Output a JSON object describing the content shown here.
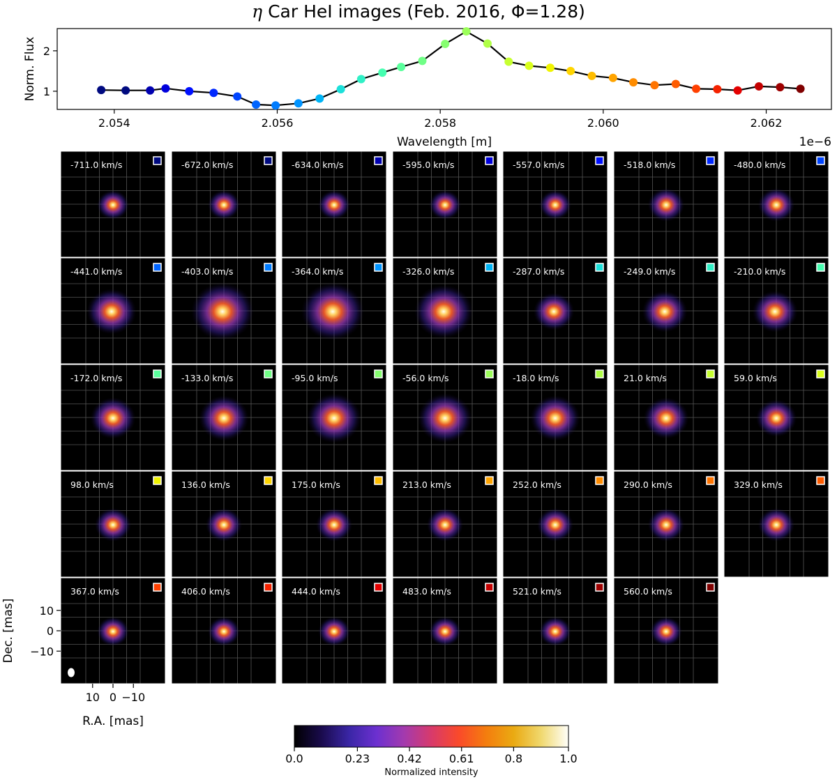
{
  "title": {
    "prefix": "η",
    "text": "Car HeI images (Feb. 2016, Φ=1.28)"
  },
  "chart_data": [
    {
      "type": "line",
      "name": "spectrum",
      "ylabel": "Norm. Flux",
      "xlabel": "Wavelength [m]",
      "x_offset_label": "1e−6",
      "xlim": [
        2.0533,
        2.0628
      ],
      "ylim": [
        0.55,
        2.55
      ],
      "xticks": [
        2.054,
        2.056,
        2.058,
        2.06,
        2.062
      ],
      "xtick_labels": [
        "2.054",
        "2.056",
        "2.058",
        "2.060",
        "2.062"
      ],
      "yticks": [
        1,
        2
      ],
      "ytick_labels": [
        "1",
        "2"
      ],
      "x": [
        2.05384,
        2.05414,
        2.05444,
        2.05463,
        2.05492,
        2.05522,
        2.05551,
        2.05574,
        2.05598,
        2.05626,
        2.05652,
        2.05678,
        2.05703,
        2.05729,
        2.05752,
        2.05778,
        2.05806,
        2.05832,
        2.05858,
        2.05884,
        2.05909,
        2.05935,
        2.0596,
        2.05986,
        2.06012,
        2.06037,
        2.06063,
        2.06089,
        2.06114,
        2.0614,
        2.06165,
        2.06191,
        2.06217,
        2.06242
      ],
      "values": [
        1.03,
        1.02,
        1.02,
        1.07,
        1.0,
        0.96,
        0.87,
        0.67,
        0.65,
        0.7,
        0.82,
        1.05,
        1.3,
        1.46,
        1.6,
        1.75,
        2.17,
        2.48,
        2.18,
        1.73,
        1.63,
        1.58,
        1.5,
        1.38,
        1.33,
        1.22,
        1.15,
        1.18,
        1.06,
        1.05,
        1.02,
        1.12,
        1.1,
        1.06
      ],
      "point_colors": [
        "#000a80",
        "#000a80",
        "#0000b0",
        "#0000dc",
        "#0010ff",
        "#0028ff",
        "#0044ff",
        "#0064ff",
        "#007cff",
        "#0094ff",
        "#00b4f6",
        "#1ce0da",
        "#30f0c6",
        "#46feb0",
        "#5aff9c",
        "#70ff86",
        "#86ff70",
        "#9cff5a",
        "#b0ff46",
        "#c6ff30",
        "#daff1c",
        "#f0f400",
        "#ffd500",
        "#ffbd00",
        "#ffa400",
        "#ff8c00",
        "#ff7400",
        "#ff5c00",
        "#ff4000",
        "#f42200",
        "#e40000",
        "#c40000",
        "#9e0000",
        "#800000"
      ]
    },
    {
      "type": "heatmap",
      "name": "channel-maps",
      "xlabel": "R.A. [mas]",
      "ylabel": "Dec. [mas]",
      "xticks": [
        10,
        0,
        -10
      ],
      "yticks": [
        10,
        0,
        -10
      ],
      "xtick_labels": [
        "10",
        "0",
        "−10"
      ],
      "ytick_labels": [
        "10",
        "0",
        "−10"
      ],
      "velocity_unit": "km/s",
      "panels": [
        {
          "velocity": "-711.0 km/s",
          "intensity": 0.42,
          "extent": 6,
          "color": "#000a80"
        },
        {
          "velocity": "-672.0 km/s",
          "intensity": 0.42,
          "extent": 6,
          "color": "#000a80"
        },
        {
          "velocity": "-634.0 km/s",
          "intensity": 0.42,
          "extent": 6,
          "color": "#0000b0"
        },
        {
          "velocity": "-595.0 km/s",
          "intensity": 0.44,
          "extent": 6,
          "color": "#0000dc"
        },
        {
          "velocity": "-557.0 km/s",
          "intensity": 0.42,
          "extent": 6,
          "color": "#0010ff"
        },
        {
          "velocity": "-518.0 km/s",
          "intensity": 0.42,
          "extent": 7,
          "color": "#0028ff"
        },
        {
          "velocity": "-480.0 km/s",
          "intensity": 0.42,
          "extent": 7,
          "color": "#0044ff"
        },
        {
          "velocity": "-441.0 km/s",
          "intensity": 0.45,
          "extent": 10,
          "color": "#0064ff"
        },
        {
          "velocity": "-403.0 km/s",
          "intensity": 0.5,
          "extent": 13,
          "color": "#007cff"
        },
        {
          "velocity": "-364.0 km/s",
          "intensity": 0.5,
          "extent": 13,
          "color": "#0094ff"
        },
        {
          "velocity": "-326.0 km/s",
          "intensity": 0.47,
          "extent": 12,
          "color": "#00b4f6"
        },
        {
          "velocity": "-287.0 km/s",
          "intensity": 0.42,
          "extent": 8,
          "color": "#1ce0da"
        },
        {
          "velocity": "-249.0 km/s",
          "intensity": 0.42,
          "extent": 9,
          "color": "#30f0c6"
        },
        {
          "velocity": "-210.0 km/s",
          "intensity": 0.42,
          "extent": 9,
          "color": "#46feb0"
        },
        {
          "velocity": "-172.0 km/s",
          "intensity": 0.44,
          "extent": 9,
          "color": "#5aff9c"
        },
        {
          "velocity": "-133.0 km/s",
          "intensity": 0.44,
          "extent": 10,
          "color": "#70ff86"
        },
        {
          "velocity": "-95.0 km/s",
          "intensity": 0.46,
          "extent": 11,
          "color": "#86ff70"
        },
        {
          "velocity": "-56.0 km/s",
          "intensity": 0.46,
          "extent": 11,
          "color": "#9cff5a"
        },
        {
          "velocity": "-18.0 km/s",
          "intensity": 0.44,
          "extent": 10,
          "color": "#b0ff46"
        },
        {
          "velocity": "21.0 km/s",
          "intensity": 0.43,
          "extent": 9,
          "color": "#c6ff30"
        },
        {
          "velocity": "59.0 km/s",
          "intensity": 0.42,
          "extent": 8,
          "color": "#daff1c"
        },
        {
          "velocity": "98.0 km/s",
          "intensity": 0.42,
          "extent": 7,
          "color": "#f0f400"
        },
        {
          "velocity": "136.0 km/s",
          "intensity": 0.42,
          "extent": 7,
          "color": "#ffd500"
        },
        {
          "velocity": "175.0 km/s",
          "intensity": 0.42,
          "extent": 7,
          "color": "#ffbd00"
        },
        {
          "velocity": "213.0 km/s",
          "intensity": 0.42,
          "extent": 7,
          "color": "#ffa400"
        },
        {
          "velocity": "252.0 km/s",
          "intensity": 0.42,
          "extent": 7,
          "color": "#ff8c00"
        },
        {
          "velocity": "290.0 km/s",
          "intensity": 0.42,
          "extent": 7,
          "color": "#ff7400"
        },
        {
          "velocity": "329.0 km/s",
          "intensity": 0.42,
          "extent": 7,
          "color": "#ff5c00"
        },
        {
          "velocity": "367.0 km/s",
          "intensity": 0.42,
          "extent": 6,
          "color": "#ff4000"
        },
        {
          "velocity": "406.0 km/s",
          "intensity": 0.42,
          "extent": 6,
          "color": "#f42200"
        },
        {
          "velocity": "444.0 km/s",
          "intensity": 0.42,
          "extent": 6,
          "color": "#e40000"
        },
        {
          "velocity": "483.0 km/s",
          "intensity": 0.42,
          "extent": 6,
          "color": "#c40000"
        },
        {
          "velocity": "521.0 km/s",
          "intensity": 0.42,
          "extent": 6,
          "color": "#9e0000"
        },
        {
          "velocity": "560.0 km/s",
          "intensity": 0.42,
          "extent": 6,
          "color": "#800000"
        }
      ]
    }
  ],
  "colorbar": {
    "label": "Normalized intensity",
    "range": [
      0.0,
      1.0
    ],
    "ticks": [
      0.0,
      0.23,
      0.42,
      0.61,
      0.8,
      1.0
    ],
    "tick_labels": [
      "0.0",
      "0.23",
      "0.42",
      "0.61",
      "0.8",
      "1.0"
    ],
    "colors": [
      "#000000",
      "#1a0b4e",
      "#3a26a6",
      "#6c30d0",
      "#a33aae",
      "#d83a6b",
      "#fa4a2a",
      "#f47d0e",
      "#eaaa12",
      "#f0d86e",
      "#fffffa"
    ]
  }
}
